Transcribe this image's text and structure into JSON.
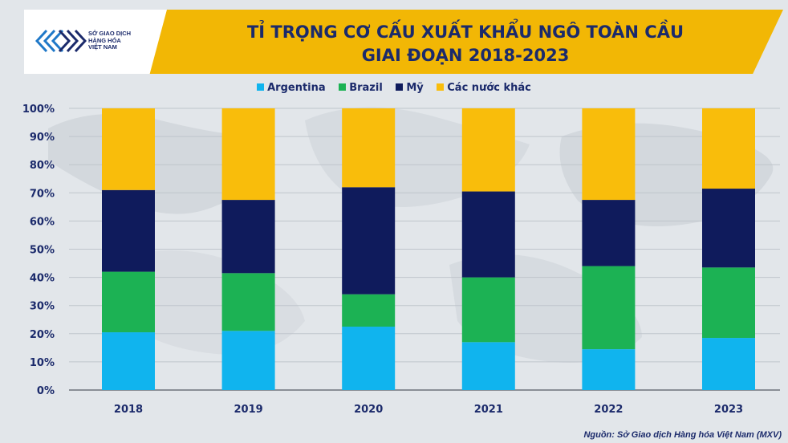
{
  "header": {
    "title_line1": "TỈ TRỌNG CƠ CẤU XUẤT KHẨU NGÔ TOÀN CẦU",
    "title_line2": "GIAI ĐOẠN 2018-2023",
    "logo_line1": "SỞ GIAO DỊCH",
    "logo_line2": "HÀNG HÓA",
    "logo_line3": "VIỆT NAM"
  },
  "source": "Nguồn: Sở Giao dịch Hàng hóa Việt Nam (MXV)",
  "colors": {
    "argentina": "#10b4ee",
    "brazil": "#1cb254",
    "my": "#0f1b5c",
    "others": "#f9bd0b",
    "text": "#1b2a6b"
  },
  "chart_data": {
    "type": "bar",
    "stacked": true,
    "title": "TỈ TRỌNG CƠ CẤU XUẤT KHẨU NGÔ TOÀN CẦU GIAI ĐOẠN 2018-2023",
    "categories": [
      "2018",
      "2019",
      "2020",
      "2021",
      "2022",
      "2023"
    ],
    "series": [
      {
        "name": "Argentina",
        "values": [
          20.5,
          21,
          22.5,
          17,
          14.5,
          18.5
        ]
      },
      {
        "name": "Brazil",
        "values": [
          21.5,
          20.5,
          11.5,
          23,
          29.5,
          25
        ]
      },
      {
        "name": "Mỹ",
        "values": [
          29,
          26,
          38,
          30.5,
          23.5,
          28
        ]
      },
      {
        "name": "Các nước khác",
        "values": [
          29,
          32.5,
          28,
          29.5,
          32.5,
          28.5
        ]
      }
    ],
    "yticks": [
      "0%",
      "10%",
      "20%",
      "30%",
      "40%",
      "50%",
      "60%",
      "70%",
      "80%",
      "90%",
      "100%"
    ],
    "ylim": [
      0,
      100
    ],
    "grid": true,
    "legend_position": "top-center"
  }
}
